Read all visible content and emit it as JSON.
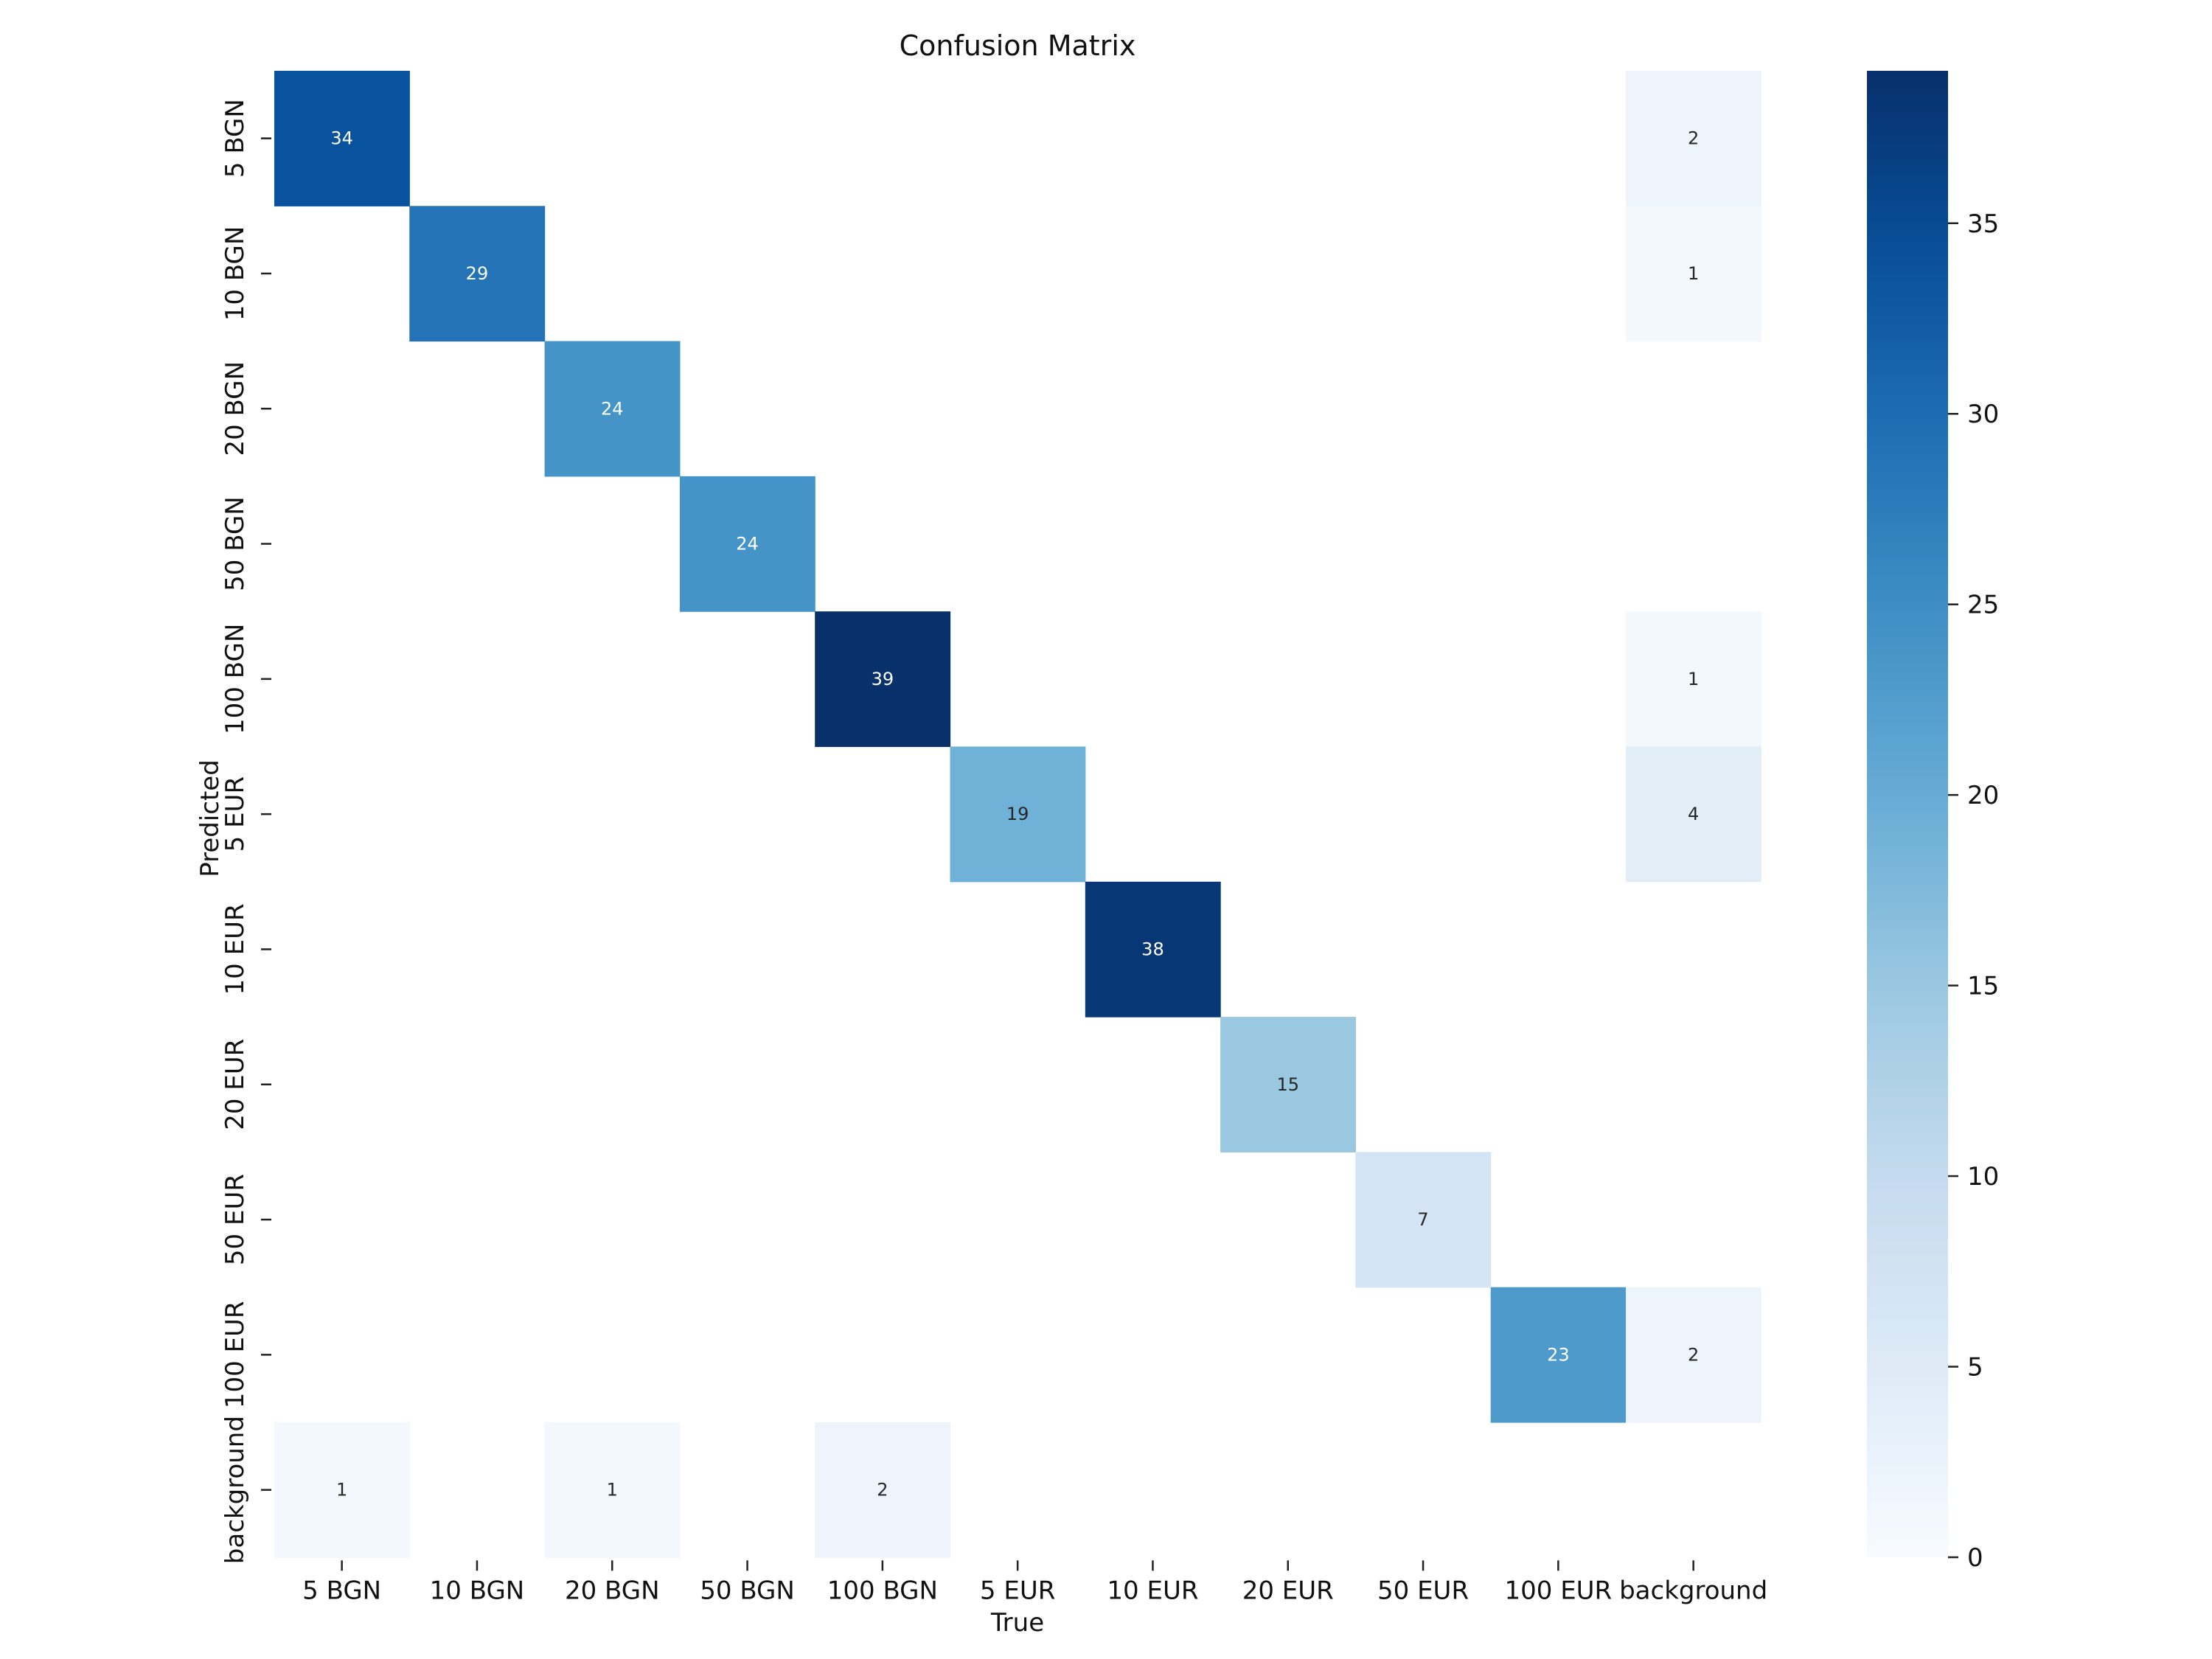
{
  "chart_data": {
    "type": "heatmap",
    "title": "Confusion Matrix",
    "xlabel": "True",
    "ylabel": "Predicted",
    "x_categories": [
      "5 BGN",
      "10 BGN",
      "20 BGN",
      "50 BGN",
      "100 BGN",
      "5 EUR",
      "10 EUR",
      "20 EUR",
      "50 EUR",
      "100 EUR",
      "background"
    ],
    "y_categories": [
      "5 BGN",
      "10 BGN",
      "20 BGN",
      "50 BGN",
      "100 BGN",
      "5 EUR",
      "10 EUR",
      "20 EUR",
      "50 EUR",
      "100 EUR",
      "background"
    ],
    "cells": [
      {
        "row": 0,
        "col": 0,
        "value": 34
      },
      {
        "row": 0,
        "col": 10,
        "value": 2
      },
      {
        "row": 1,
        "col": 1,
        "value": 29
      },
      {
        "row": 1,
        "col": 10,
        "value": 1
      },
      {
        "row": 2,
        "col": 2,
        "value": 24
      },
      {
        "row": 3,
        "col": 3,
        "value": 24
      },
      {
        "row": 4,
        "col": 4,
        "value": 39
      },
      {
        "row": 4,
        "col": 10,
        "value": 1
      },
      {
        "row": 5,
        "col": 5,
        "value": 19
      },
      {
        "row": 5,
        "col": 10,
        "value": 4
      },
      {
        "row": 6,
        "col": 6,
        "value": 38
      },
      {
        "row": 7,
        "col": 7,
        "value": 15
      },
      {
        "row": 8,
        "col": 8,
        "value": 7
      },
      {
        "row": 9,
        "col": 9,
        "value": 23
      },
      {
        "row": 9,
        "col": 10,
        "value": 2
      },
      {
        "row": 10,
        "col": 0,
        "value": 1
      },
      {
        "row": 10,
        "col": 2,
        "value": 1
      },
      {
        "row": 10,
        "col": 4,
        "value": 2
      }
    ],
    "colorbar": {
      "colormap": "Blues",
      "vmin": 0,
      "vmax": 39,
      "ticks": [
        "0",
        "5",
        "10",
        "15",
        "20",
        "25",
        "30",
        "35"
      ]
    },
    "grid": false,
    "legend": "colorbar-right"
  }
}
